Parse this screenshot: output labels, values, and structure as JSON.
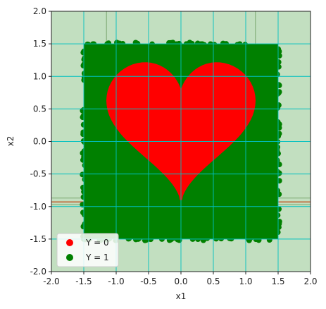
{
  "chart_data": {
    "type": "scatter",
    "title": "",
    "xlabel": "x1",
    "ylabel": "x2",
    "xlim": [
      -2.0,
      2.0
    ],
    "ylim": [
      -2.0,
      2.0
    ],
    "x_ticks": [
      "-2.0",
      "-1.5",
      "-1.0",
      "-0.5",
      "0.0",
      "0.5",
      "1.0",
      "1.5",
      "2.0"
    ],
    "y_ticks": [
      "-2.0",
      "-1.5",
      "-1.0",
      "-0.5",
      "0.0",
      "0.5",
      "1.0",
      "1.5",
      "2.0"
    ],
    "grid": true,
    "grid_color": "#00c0c0",
    "decision_background": "#c2dfc0",
    "square_region": {
      "x": [
        -1.5,
        1.5
      ],
      "y": [
        -1.5,
        1.5
      ]
    },
    "heart_shape": "x1^2 + (x2 - sqrt(|x1|))^2 <= 1 (scaled)",
    "legend": {
      "placement": "lower-left",
      "entries": [
        {
          "label": "Y = 0",
          "color": "#ff0000"
        },
        {
          "label": "Y = 1",
          "color": "#008000"
        }
      ]
    },
    "series": [
      {
        "name": "Y = 0",
        "color": "#ff0000",
        "region": "heart"
      },
      {
        "name": "Y = 1",
        "color": "#008000",
        "region": "square minus heart"
      }
    ],
    "boundary_line": {
      "y": -0.93,
      "color": "#c06030"
    }
  }
}
